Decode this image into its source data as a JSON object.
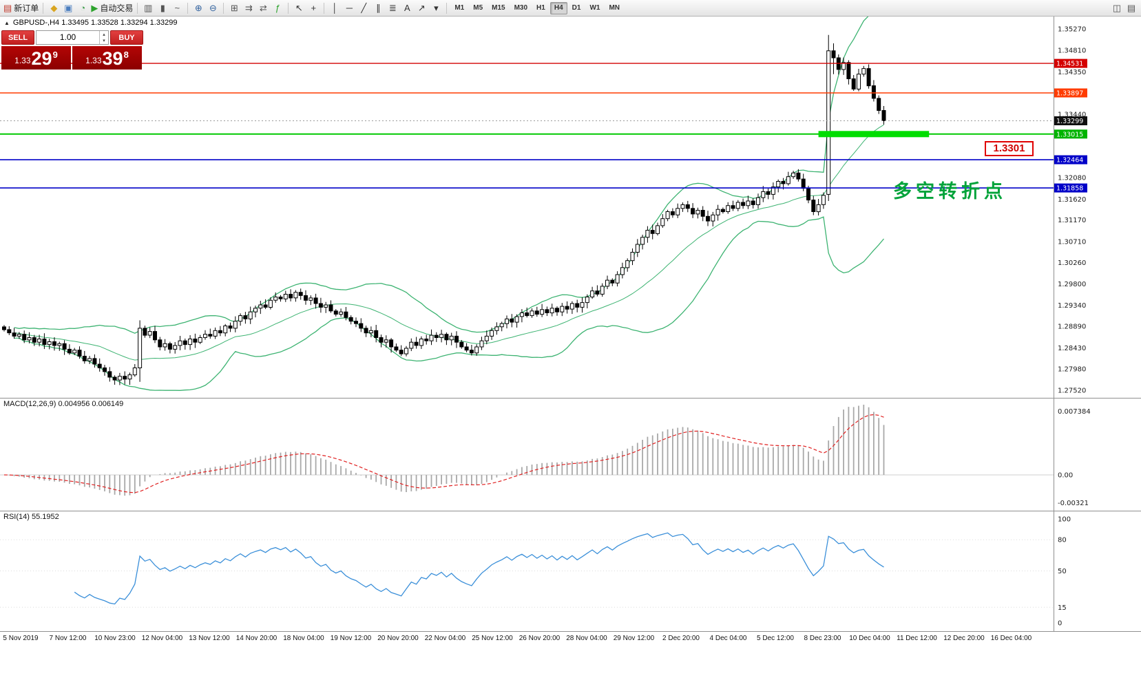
{
  "toolbar": {
    "items": [
      {
        "name": "new-order-button",
        "type": "labeled",
        "icon": "new-order-icon",
        "glyph": "▤",
        "glyph_color": "#c0392b",
        "label": "新订单"
      },
      {
        "type": "sep"
      },
      {
        "name": "marketwatch-icon",
        "type": "icon",
        "glyph": "◆",
        "glyph_color": "#d9a520"
      },
      {
        "name": "data-window-icon",
        "type": "icon",
        "glyph": "▣",
        "glyph_color": "#4a7dbf"
      },
      {
        "name": "navigator-icon",
        "type": "icon",
        "glyph": "◔",
        "glyph_color": "#3f9e4d"
      },
      {
        "name": "autotrading-button",
        "type": "labeled",
        "icon": "autotrading-play-icon",
        "glyph": "▶",
        "glyph_color": "#2da32d",
        "label": "自动交易"
      },
      {
        "type": "sep"
      },
      {
        "name": "bar-chart-icon",
        "type": "icon",
        "glyph": "▥",
        "glyph_color": "#555555"
      },
      {
        "name": "candlestick-chart-icon",
        "type": "icon",
        "glyph": "▮",
        "glyph_color": "#555555"
      },
      {
        "name": "line-chart-icon",
        "type": "icon",
        "glyph": "~",
        "glyph_color": "#555555"
      },
      {
        "type": "sep"
      },
      {
        "name": "zoom-in-icon",
        "type": "icon",
        "glyph": "⊕",
        "glyph_color": "#33639f"
      },
      {
        "name": "zoom-out-icon",
        "type": "icon",
        "glyph": "⊖",
        "glyph_color": "#33639f"
      },
      {
        "type": "sep"
      },
      {
        "name": "tile-windows-icon",
        "type": "icon",
        "glyph": "⊞",
        "glyph_color": "#555555"
      },
      {
        "name": "auto-scroll-icon",
        "type": "icon",
        "glyph": "⇉",
        "glyph_color": "#555555"
      },
      {
        "name": "chart-shift-icon",
        "type": "icon",
        "glyph": "⇄",
        "glyph_color": "#555555"
      },
      {
        "name": "indicators-icon",
        "type": "icon",
        "glyph": "ƒ",
        "glyph_color": "#2da32d"
      },
      {
        "type": "sep"
      },
      {
        "name": "cursor-icon",
        "type": "icon",
        "glyph": "↖",
        "glyph_color": "#333333"
      },
      {
        "name": "crosshair-icon",
        "type": "icon",
        "glyph": "+",
        "glyph_color": "#333333"
      },
      {
        "type": "sep"
      },
      {
        "name": "vertical-line-icon",
        "type": "icon",
        "glyph": "│",
        "glyph_color": "#333333"
      },
      {
        "name": "horizontal-line-icon",
        "type": "icon",
        "glyph": "─",
        "glyph_color": "#333333"
      },
      {
        "name": "trendline-icon",
        "type": "icon",
        "glyph": "╱",
        "glyph_color": "#333333"
      },
      {
        "name": "channel-icon",
        "type": "icon",
        "glyph": "∥",
        "glyph_color": "#333333"
      },
      {
        "name": "fibonacci-icon",
        "type": "icon",
        "glyph": "≣",
        "glyph_color": "#333333"
      },
      {
        "name": "text-icon",
        "type": "icon",
        "glyph": "A",
        "glyph_color": "#333333"
      },
      {
        "name": "arrows-icon",
        "type": "icon",
        "glyph": "↗",
        "glyph_color": "#333333"
      },
      {
        "name": "objects-dropdown-icon",
        "type": "icon",
        "glyph": "▾",
        "glyph_color": "#333333"
      },
      {
        "type": "sep"
      },
      {
        "name": "tf-m1",
        "type": "tf",
        "label": "M1"
      },
      {
        "name": "tf-m5",
        "type": "tf",
        "label": "M5"
      },
      {
        "name": "tf-m15",
        "type": "tf",
        "label": "M15"
      },
      {
        "name": "tf-m30",
        "type": "tf",
        "label": "M30"
      },
      {
        "name": "tf-h1",
        "type": "tf",
        "label": "H1"
      },
      {
        "name": "tf-h4",
        "type": "tf",
        "label": "H4",
        "active": true
      },
      {
        "name": "tf-d1",
        "type": "tf",
        "label": "D1"
      },
      {
        "name": "tf-w1",
        "type": "tf",
        "label": "W1"
      },
      {
        "name": "tf-mn",
        "type": "tf",
        "label": "MN"
      },
      {
        "type": "spacer"
      },
      {
        "name": "chart-window-icon",
        "type": "icon",
        "glyph": "◫",
        "glyph_color": "#555555"
      },
      {
        "name": "docking-icon",
        "type": "icon",
        "glyph": "▤",
        "glyph_color": "#555555"
      }
    ]
  },
  "symbol_info": {
    "collapse_glyph": "▲",
    "text": "GBPUSD-,H4  1.33495 1.33528 1.33294 1.33299"
  },
  "trade_panel": {
    "sell_label": "SELL",
    "buy_label": "BUY",
    "volume": "1.00",
    "volume_up_glyph": "▴",
    "volume_down_glyph": "▾",
    "bid_prefix": "1.33",
    "bid_main": "29",
    "bid_sup": "9",
    "ask_prefix": "1.33",
    "ask_main": "39",
    "ask_sup": "8",
    "button_color": "#c21f1f",
    "price_bg_color": "#8c0000"
  },
  "annotations": {
    "turning_point": "多空转折点",
    "price_label": "1.3301"
  },
  "chart_data": {
    "type": "candlestick",
    "symbol": "GBPUSD-",
    "timeframe": "H4",
    "ohlc_display": {
      "open": "1.33495",
      "high": "1.33528",
      "low": "1.33294",
      "close": "1.33299"
    },
    "current_price": 1.33299,
    "ylim": [
      1.2752,
      1.3527
    ],
    "price_axis_labels": [
      "1.35270",
      "1.34810",
      "1.34350",
      "1.33440",
      "1.32080",
      "1.31620",
      "1.31170",
      "1.30710",
      "1.30260",
      "1.29800",
      "1.29340",
      "1.28890",
      "1.28430",
      "1.27980",
      "1.27520"
    ],
    "price_badges": [
      {
        "label": "1.34531",
        "value": 1.34531,
        "color": "#d40000"
      },
      {
        "label": "1.33897",
        "value": 1.33897,
        "color": "#ff3c00"
      },
      {
        "label": "1.33299",
        "value": 1.33299,
        "color": "#101010"
      },
      {
        "label": "1.33015",
        "value": 1.33015,
        "color": "#00b400"
      },
      {
        "label": "1.32464",
        "value": 1.32464,
        "color": "#0000c8"
      },
      {
        "label": "1.31858",
        "value": 1.31858,
        "color": "#0000c8"
      }
    ],
    "hlines": [
      {
        "price": 1.34531,
        "color": "#d40000",
        "width": 1.4
      },
      {
        "price": 1.33897,
        "color": "#ff3c00",
        "width": 1.6
      },
      {
        "price": 1.33015,
        "color": "#00c800",
        "width": 2
      },
      {
        "price": 1.32464,
        "color": "#0000c8",
        "width": 1.6
      },
      {
        "price": 1.31858,
        "color": "#0000c8",
        "width": 1.6
      }
    ],
    "highlight_rect": {
      "price": 1.33015,
      "start_bar": 162,
      "end_bar": 184,
      "thickness": 9,
      "color": "#00dd00"
    },
    "closes": [
      1.2882,
      1.2875,
      1.2868,
      1.2872,
      1.286,
      1.2865,
      1.2855,
      1.2862,
      1.285,
      1.2856,
      1.2848,
      1.2852,
      1.284,
      1.2832,
      1.2838,
      1.2825,
      1.2815,
      1.282,
      1.2808,
      1.28,
      1.2792,
      1.278,
      1.2774,
      1.2782,
      1.2776,
      1.2785,
      1.28,
      1.2885,
      1.287,
      1.2878,
      1.286,
      1.2845,
      1.2852,
      1.284,
      1.2848,
      1.2858,
      1.285,
      1.2862,
      1.2855,
      1.2865,
      1.2872,
      1.2868,
      1.288,
      1.2875,
      1.289,
      1.2885,
      1.29,
      1.2912,
      1.2905,
      1.292,
      1.2928,
      1.2935,
      1.293,
      1.2945,
      1.2952,
      1.2948,
      1.2958,
      1.295,
      1.2962,
      1.2955,
      1.2945,
      1.295,
      1.2938,
      1.293,
      1.2935,
      1.2922,
      1.2915,
      1.292,
      1.2908,
      1.29,
      1.2895,
      1.2885,
      1.2875,
      1.288,
      1.2865,
      1.2855,
      1.286,
      1.2845,
      1.2838,
      1.283,
      1.2842,
      1.2855,
      1.2848,
      1.2862,
      1.2858,
      1.287,
      1.2865,
      1.2872,
      1.286,
      1.2868,
      1.2855,
      1.2845,
      1.2838,
      1.2832,
      1.2845,
      1.2858,
      1.2868,
      1.288,
      1.2888,
      1.2895,
      1.2905,
      1.2898,
      1.291,
      1.2918,
      1.2912,
      1.2922,
      1.2915,
      1.2925,
      1.2918,
      1.2928,
      1.292,
      1.2932,
      1.2926,
      1.2938,
      1.293,
      1.294,
      1.2952,
      1.2965,
      1.2958,
      1.2975,
      1.2988,
      1.2982,
      1.3,
      1.3015,
      1.303,
      1.3048,
      1.3065,
      1.308,
      1.3095,
      1.3088,
      1.3105,
      1.312,
      1.3135,
      1.3128,
      1.3142,
      1.315,
      1.3142,
      1.313,
      1.3138,
      1.3125,
      1.3115,
      1.3128,
      1.314,
      1.3135,
      1.3148,
      1.3142,
      1.3155,
      1.3148,
      1.3158,
      1.315,
      1.3165,
      1.3178,
      1.3172,
      1.3188,
      1.32,
      1.3195,
      1.321,
      1.3218,
      1.3205,
      1.3185,
      1.316,
      1.3135,
      1.315,
      1.317,
      1.348,
      1.3465,
      1.344,
      1.3455,
      1.342,
      1.3398,
      1.343,
      1.3442,
      1.3405,
      1.3378,
      1.3352,
      1.333
    ],
    "bar_overrides": {
      "27": {
        "o": 1.28,
        "h": 1.2902,
        "l": 1.277,
        "c": 1.2885
      },
      "164": {
        "o": 1.3172,
        "h": 1.3514,
        "l": 1.3158,
        "c": 1.348
      },
      "165": {
        "o": 1.348,
        "h": 1.3496,
        "l": 1.343,
        "c": 1.3465
      }
    },
    "indicators": {
      "bollinger": {
        "period": 20,
        "deviation": 2,
        "color": "#3CB371"
      },
      "macd": {
        "label": "MACD(12,26,9) 0.004956 0.006149",
        "fast": 12,
        "slow": 26,
        "signal": 9,
        "hist_color": "#a8a8a8",
        "signal_color": "#e02020",
        "axis": [
          {
            "label": "0.007384",
            "value": 0.007384
          },
          {
            "label": "0.00",
            "value": 0
          },
          {
            "label": "-0.00321",
            "value": -0.00321
          }
        ]
      },
      "rsi": {
        "label": "RSI(14) 55.1952",
        "period": 14,
        "color": "#3a8fd9",
        "levels": [
          80,
          50,
          15
        ],
        "axis": [
          {
            "label": "100",
            "value": 100
          },
          {
            "label": "80",
            "value": 80
          },
          {
            "label": "50",
            "value": 50
          },
          {
            "label": "15",
            "value": 15
          },
          {
            "label": "0",
            "value": 0
          }
        ]
      }
    },
    "time_axis_labels": [
      "5 Nov 2019",
      "7 Nov 12:00",
      "10 Nov 23:00",
      "12 Nov 04:00",
      "13 Nov 12:00",
      "14 Nov 20:00",
      "18 Nov 04:00",
      "19 Nov 12:00",
      "20 Nov 20:00",
      "22 Nov 04:00",
      "25 Nov 12:00",
      "26 Nov 20:00",
      "28 Nov 04:00",
      "29 Nov 12:00",
      "2 Dec 20:00",
      "4 Dec 04:00",
      "5 Dec 12:00",
      "8 Dec 23:00",
      "10 Dec 04:00",
      "11 Dec 12:00",
      "12 Dec 20:00",
      "16 Dec 04:00"
    ]
  }
}
